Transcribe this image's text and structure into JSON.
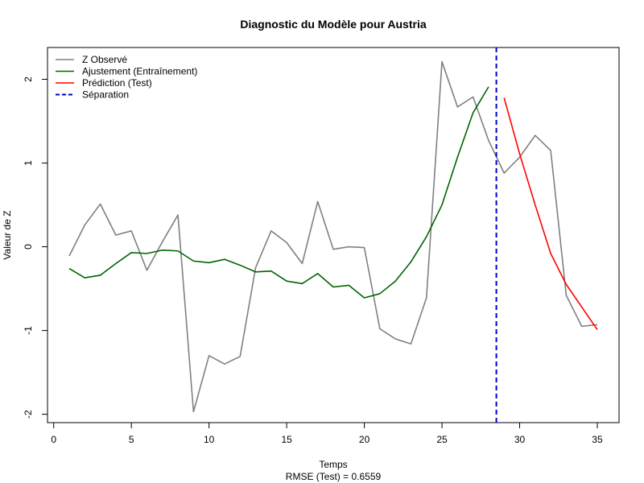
{
  "chart_data": {
    "type": "line",
    "title": "Diagnostic du Modèle pour Austria",
    "xlabel": "Temps",
    "xlabel_sub": "RMSE (Test) = 0.6559",
    "ylabel": "Valeur de Z",
    "xlim": [
      -0.4,
      36.4
    ],
    "ylim": [
      -2.1,
      2.38
    ],
    "xticks": [
      0,
      5,
      10,
      15,
      20,
      25,
      30,
      35
    ],
    "yticks": [
      -2,
      -1,
      0,
      1,
      2
    ],
    "legend_position": "top-left",
    "grid": false,
    "separator_x": 28.5,
    "series": [
      {
        "name": "Z Observé",
        "color": "#808080",
        "style": "solid",
        "x": [
          1,
          2,
          3,
          4,
          5,
          6,
          7,
          8,
          9,
          10,
          11,
          12,
          13,
          14,
          15,
          16,
          17,
          18,
          19,
          20,
          21,
          22,
          23,
          24,
          25,
          26,
          27,
          28,
          29,
          30,
          31,
          32,
          33,
          34,
          35
        ],
        "y": [
          -0.11,
          0.26,
          0.51,
          0.14,
          0.19,
          -0.28,
          0.06,
          0.38,
          -1.97,
          -1.3,
          -1.4,
          -1.31,
          -0.25,
          0.19,
          0.05,
          -0.2,
          0.54,
          -0.03,
          0.0,
          -0.01,
          -0.98,
          -1.1,
          -1.16,
          -0.61,
          2.21,
          1.67,
          1.79,
          1.27,
          0.88,
          1.07,
          1.33,
          1.15,
          -0.58,
          -0.95,
          -0.93
        ]
      },
      {
        "name": "Ajustement (Entraînement)",
        "color": "#006400",
        "style": "solid",
        "x": [
          1,
          2,
          3,
          4,
          5,
          6,
          7,
          8,
          9,
          10,
          11,
          12,
          13,
          14,
          15,
          16,
          17,
          18,
          19,
          20,
          21,
          22,
          23,
          24,
          25,
          26,
          27,
          28
        ],
        "y": [
          -0.26,
          -0.37,
          -0.34,
          -0.2,
          -0.07,
          -0.08,
          -0.04,
          -0.05,
          -0.17,
          -0.19,
          -0.15,
          -0.22,
          -0.3,
          -0.29,
          -0.41,
          -0.44,
          -0.32,
          -0.48,
          -0.46,
          -0.61,
          -0.56,
          -0.41,
          -0.18,
          0.12,
          0.5,
          1.07,
          1.6,
          1.91
        ]
      },
      {
        "name": "Prédiction (Test)",
        "color": "#ff0000",
        "style": "solid",
        "x": [
          29,
          30,
          31,
          32,
          33,
          34,
          35
        ],
        "y": [
          1.78,
          1.11,
          0.5,
          -0.08,
          -0.45,
          -0.72,
          -0.99
        ]
      }
    ],
    "separator": {
      "name": "Séparation",
      "color": "#0000cd",
      "style": "dashed"
    }
  }
}
